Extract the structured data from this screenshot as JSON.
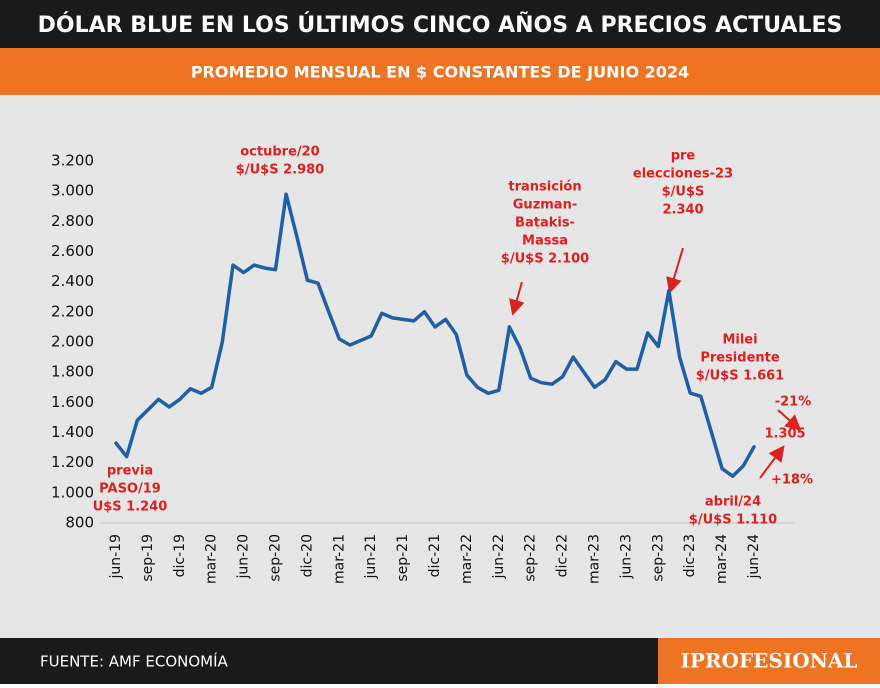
{
  "chart_data": {
    "type": "line",
    "title": "DÓLAR BLUE EN LOS ÚLTIMOS CINCO AÑOS A PRECIOS ACTUALES",
    "subtitle": "PROMEDIO MENSUAL EN $ CONSTANTES DE JUNIO 2024",
    "source": "FUENTE: AMF ECONOMÍA",
    "brand": "IPROFESIONAL",
    "categories": [
      "jun-19",
      null,
      null,
      "sep-19",
      null,
      null,
      "dic-19",
      null,
      null,
      "mar-20",
      null,
      null,
      "jun-20",
      null,
      null,
      "sep-20",
      null,
      null,
      "dic-20",
      null,
      null,
      "mar-21",
      null,
      null,
      "jun-21",
      null,
      null,
      "sep-21",
      null,
      null,
      "dic-21",
      null,
      null,
      "mar-22",
      null,
      null,
      "jun-22",
      null,
      null,
      "sep-22",
      null,
      null,
      "dic-22",
      null,
      null,
      "mar-23",
      null,
      null,
      "jun-23",
      null,
      null,
      "sep-23",
      null,
      null,
      "dic-23",
      null,
      null,
      "mar-24",
      null,
      null,
      "jun-24"
    ],
    "series": [
      {
        "color": "#1f5fa8",
        "values": [
          1330,
          1240,
          1480,
          1550,
          1620,
          1570,
          1620,
          1690,
          1660,
          1700,
          2000,
          2510,
          2460,
          2510,
          2490,
          2480,
          2980,
          2700,
          2410,
          2390,
          2200,
          2020,
          1980,
          2010,
          2040,
          2190,
          2160,
          2150,
          2140,
          2200,
          2100,
          2150,
          2050,
          1780,
          1700,
          1660,
          1680,
          2100,
          1960,
          1760,
          1730,
          1720,
          1770,
          1900,
          1800,
          1700,
          1750,
          1870,
          1820,
          1820,
          2060,
          1970,
          2340,
          1900,
          1661,
          1640,
          1400,
          1160,
          1110,
          1180,
          1305
        ]
      }
    ],
    "ylim": [
      800,
      3200
    ],
    "yticks": [
      800,
      {
        "value": 1000,
        "label": "1.000"
      },
      {
        "value": 1200,
        "label": "1.200"
      },
      {
        "value": 1400,
        "label": "1.400"
      },
      {
        "value": 1600,
        "label": "1.600"
      },
      {
        "value": 1800,
        "label": "1.800"
      },
      {
        "value": 2000,
        "label": "2.000"
      },
      {
        "value": 2200,
        "label": "2.200"
      },
      {
        "value": 2400,
        "label": "2.400"
      },
      {
        "value": 2600,
        "label": "2.600"
      },
      {
        "value": 2800,
        "label": "2.800"
      },
      {
        "value": 3000,
        "label": "3.000"
      },
      {
        "value": 3200,
        "label": "3.200"
      }
    ],
    "annotations": [
      [
        "octubre/20",
        "$/U$S 2.980"
      ],
      [
        "transición",
        "Guzman-",
        "Batakis-",
        "Massa",
        "$/U$S 2.100"
      ],
      [
        "pre",
        "elecciones-23",
        "$/U$S",
        "2.340"
      ],
      [
        "Milei",
        "Presidente",
        "$/U$S 1.661"
      ],
      [
        "-21%"
      ],
      [
        "1.305"
      ],
      [
        "+18%"
      ],
      [
        "previa",
        "PASO/19",
        "U$S 1.240"
      ],
      [
        "abril/24",
        "$/U$S 1.110"
      ]
    ]
  }
}
